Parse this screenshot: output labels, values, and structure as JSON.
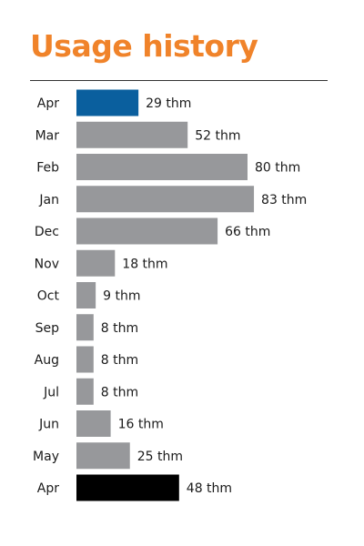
{
  "chart_data": {
    "type": "bar",
    "orientation": "horizontal",
    "title": "Usage history",
    "unit": "thm",
    "categories": [
      "Apr",
      "Mar",
      "Feb",
      "Jan",
      "Dec",
      "Nov",
      "Oct",
      "Sep",
      "Aug",
      "Jul",
      "Jun",
      "May",
      "Apr"
    ],
    "values": [
      29,
      52,
      80,
      83,
      66,
      18,
      9,
      8,
      8,
      8,
      16,
      25,
      48
    ],
    "value_labels": [
      "29 thm",
      "52 thm",
      "80 thm",
      "83 thm",
      "66 thm",
      "18 thm",
      "9 thm",
      "8 thm",
      "8 thm",
      "8 thm",
      "16 thm",
      "25 thm",
      "48 thm"
    ],
    "xlim": [
      0,
      100
    ],
    "grid": false,
    "colors": {
      "title": "#f0832a",
      "current": "#0a5f9e",
      "default": "#97989b",
      "year_ago": "#000000"
    },
    "bar_roles": [
      "current",
      "default",
      "default",
      "default",
      "default",
      "default",
      "default",
      "default",
      "default",
      "default",
      "default",
      "default",
      "year_ago"
    ]
  }
}
